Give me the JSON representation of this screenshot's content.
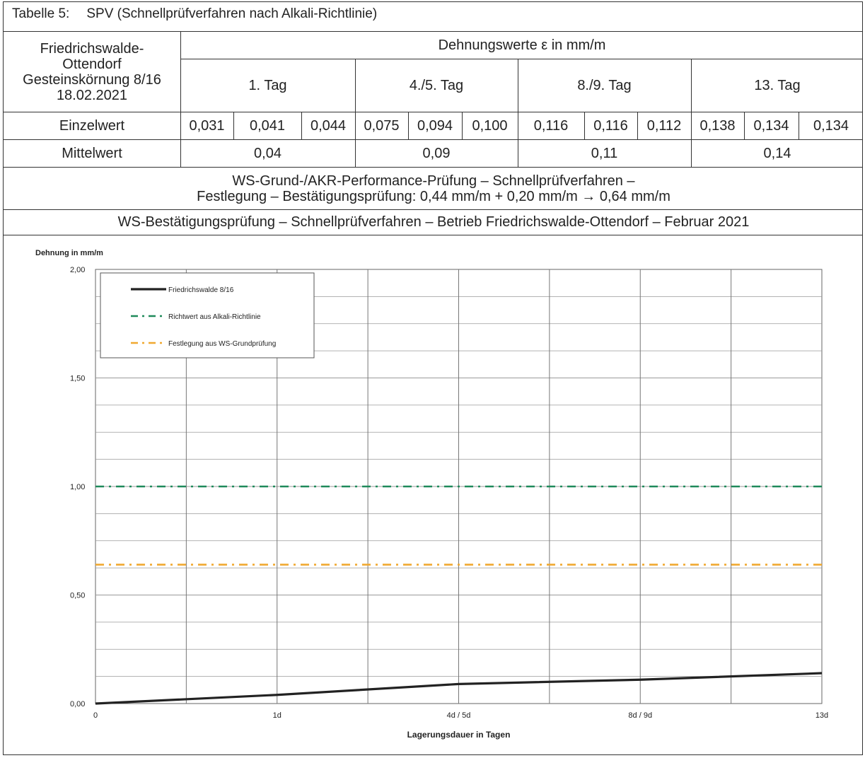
{
  "table": {
    "caption_num": "Tabelle 5:",
    "caption_text": "SPV (Schnellprüfverfahren nach Alkali-Richtlinie)",
    "sample": [
      "Friedrichswalde-",
      "Ottendorf",
      "Gesteinskörnung 8/16",
      "18.02.2021"
    ],
    "group_header": "Dehnungswerte ε in mm/m",
    "days": [
      "1. Tag",
      "4./5. Tag",
      "8./9. Tag",
      "13. Tag"
    ],
    "row1_label": "Einzelwert",
    "einzelwerte": [
      "0,031",
      "0,041",
      "0,044",
      "0,075",
      "0,094",
      "0,100",
      "0,116",
      "0,116",
      "0,112",
      "0,138",
      "0,134",
      "0,134"
    ],
    "row2_label": "Mittelwert",
    "mittelwerte": [
      "0,04",
      "0,09",
      "0,11",
      "0,14"
    ],
    "note_line1": "WS-Grund-/AKR-Performance-Prüfung – Schnellprüfverfahren –",
    "note_line2": "Festlegung – Bestätigungsprüfung: 0,44 mm/m + 0,20 mm/m → 0,64 mm/m",
    "note_line3": "WS-Bestätigungsprüfung – Schnellprüfverfahren – Betrieb Friedrichswalde-Ottendorf – Februar  2021"
  },
  "chart_data": {
    "type": "line",
    "ylabel": "Dehnung in mm/m",
    "xlabel": "Lagerungsdauer  in Tagen",
    "ylim": [
      0,
      2
    ],
    "yticks": [
      "0,00",
      "0,50",
      "1,00",
      "1,50",
      "2,00"
    ],
    "x_tick_labels": [
      "0",
      "1d",
      "4d / 5d",
      "8d / 9d",
      "13d"
    ],
    "grid": true,
    "legend_position": "top-left",
    "series": [
      {
        "name": "Friedrichswalde 8/16",
        "color": "#222222",
        "style": "solid",
        "x": [
          0,
          1,
          2,
          3,
          4
        ],
        "values": [
          0,
          0.04,
          0.09,
          0.11,
          0.14
        ]
      },
      {
        "name": "Richtwert aus Alkali-Richtlinie",
        "color": "#1f8a5a",
        "style": "dash-dot",
        "x": [
          0,
          4
        ],
        "values": [
          1.0,
          1.0
        ]
      },
      {
        "name": "Festlegung aus WS-Grundprüfung",
        "color": "#f0a830",
        "style": "dash-dot",
        "x": [
          0,
          4
        ],
        "values": [
          0.64,
          0.64
        ]
      }
    ]
  }
}
